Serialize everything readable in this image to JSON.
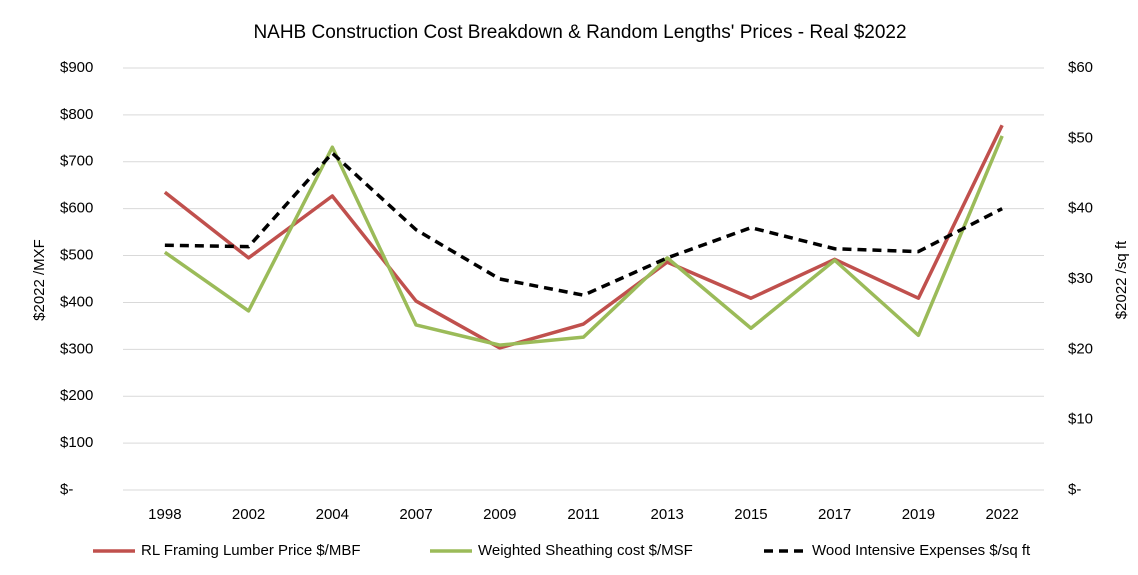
{
  "chart_data": {
    "type": "line",
    "title": "NAHB Construction Cost Breakdown & Random Lengths' Prices - Real $2022",
    "y_label": "$2022 /MXF",
    "y2_label": "$2022 /sq ft",
    "categories": [
      "1998",
      "2002",
      "2004",
      "2007",
      "2009",
      "2011",
      "2013",
      "2015",
      "2017",
      "2019",
      "2022"
    ],
    "series": [
      {
        "name": "RL Framing Lumber Price $/MBF",
        "color": "#c0504d",
        "dash": "solid",
        "values": [
          635,
          495,
          627,
          403,
          303,
          354,
          486,
          409,
          492,
          409,
          778
        ]
      },
      {
        "name": "Weighted Sheathing cost $/MSF",
        "color": "#9bbb59",
        "dash": "solid",
        "values": [
          507,
          382,
          731,
          352,
          309,
          326,
          495,
          345,
          490,
          330,
          755
        ]
      },
      {
        "name": "Wood Intensive Expenses $/sq ft",
        "color": "#000000",
        "dash": "dashed",
        "axis": "y2",
        "values": [
          34.8,
          34.6,
          47.9,
          37.0,
          30.0,
          27.7,
          33.0,
          37.3,
          34.3,
          33.9,
          40.0
        ]
      }
    ],
    "ylim": [
      0,
      900
    ],
    "yticks": [
      {
        "value": 0,
        "label": "$-"
      },
      {
        "value": 100,
        "label": "$100"
      },
      {
        "value": 200,
        "label": "$200"
      },
      {
        "value": 300,
        "label": "$300"
      },
      {
        "value": 400,
        "label": "$400"
      },
      {
        "value": 500,
        "label": "$500"
      },
      {
        "value": 600,
        "label": "$600"
      },
      {
        "value": 700,
        "label": "$700"
      },
      {
        "value": 800,
        "label": "$800"
      },
      {
        "value": 900,
        "label": "$900"
      }
    ],
    "y2lim": [
      0,
      60
    ],
    "y2ticks": [
      {
        "value": 0,
        "label": "$-"
      },
      {
        "value": 10,
        "label": "$10"
      },
      {
        "value": 20,
        "label": "$20"
      },
      {
        "value": 30,
        "label": "$30"
      },
      {
        "value": 40,
        "label": "$40"
      },
      {
        "value": 50,
        "label": "$50"
      },
      {
        "value": 60,
        "label": "$60"
      }
    ],
    "grid": true,
    "legend": "bottom"
  }
}
